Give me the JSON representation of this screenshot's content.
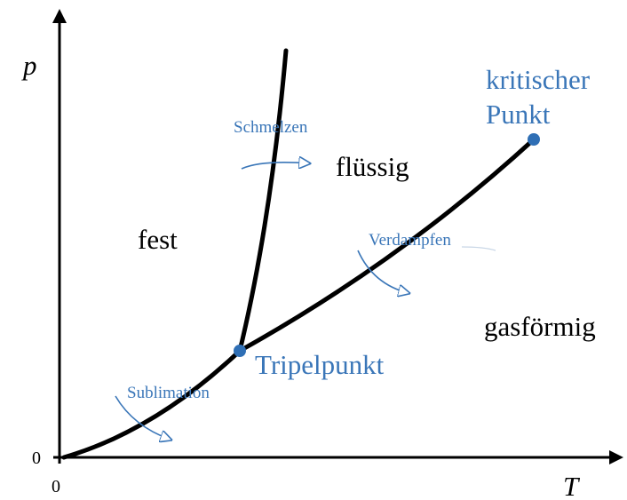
{
  "axes": {
    "y_label": "p",
    "x_label": "T",
    "y_origin": "0",
    "x_origin": "0"
  },
  "regions": {
    "solid": "fest",
    "liquid": "flüssig",
    "gas": "gasförmig"
  },
  "points": {
    "critical": [
      "kritischer",
      "Punkt"
    ],
    "triple": "Tripelpunkt"
  },
  "transitions": {
    "melting": "Schmelzen",
    "vaporization": "Verdampfen",
    "sublimation": "Sublimation"
  }
}
